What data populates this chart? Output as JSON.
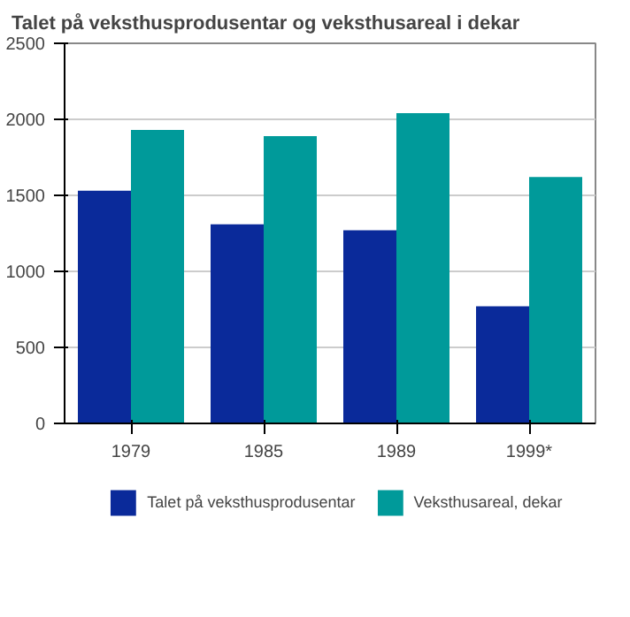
{
  "chart_data": {
    "type": "bar",
    "title": "Talet på veksthusprodusentar og veksthusareal i dekar",
    "categories": [
      "1979",
      "1985",
      "1989",
      "1999*"
    ],
    "series": [
      {
        "name": "Talet på veksthusprodusentar",
        "color": "#0a2a9a",
        "values": [
          1530,
          1310,
          1270,
          770
        ]
      },
      {
        "name": "Veksthusareal, dekar",
        "color": "#009a9a",
        "values": [
          1930,
          1890,
          2040,
          1620
        ]
      }
    ],
    "ylim": [
      0,
      2500
    ],
    "yticks": [
      0,
      500,
      1000,
      1500,
      2000,
      2500
    ],
    "grid": "y",
    "legend": "bottom"
  }
}
